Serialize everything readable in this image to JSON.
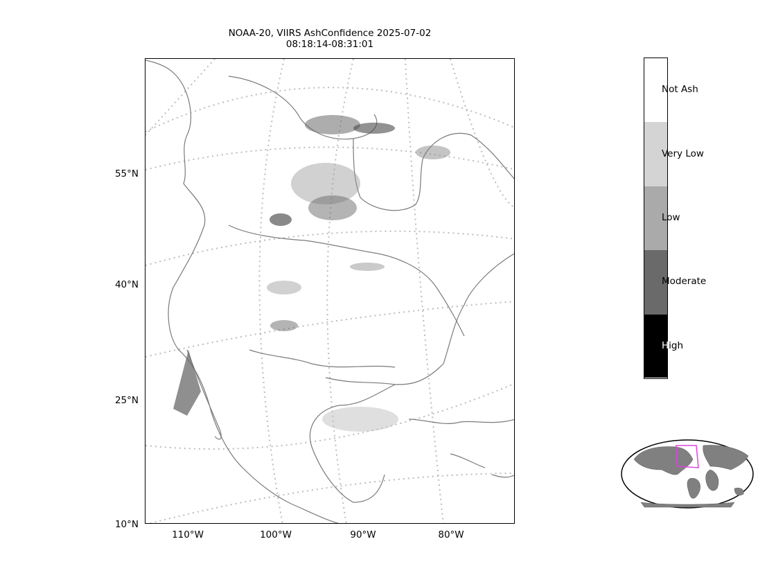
{
  "title": {
    "line1": "NOAA-20, VIIRS AshConfidence 2025-07-02",
    "line2": "08:18:14-08:31:01"
  },
  "map": {
    "lat_labels": [
      "55°N",
      "40°N",
      "25°N",
      "10°N"
    ],
    "lon_labels": [
      "110°W",
      "100°W",
      "90°W",
      "80°W"
    ],
    "gridline_style": "dotted",
    "coastline_color": "#7a7a7a"
  },
  "colorbar": {
    "categories": [
      {
        "label": "Not Ash",
        "color": "#ffffff"
      },
      {
        "label": "Very Low",
        "color": "#d4d4d4"
      },
      {
        "label": "Low",
        "color": "#aaaaaa"
      },
      {
        "label": "Moderate",
        "color": "#6a6a6a"
      },
      {
        "label": "High",
        "color": "#000000"
      }
    ]
  },
  "inset": {
    "land_color": "#808080",
    "highlight_color": "#dd44dd"
  }
}
